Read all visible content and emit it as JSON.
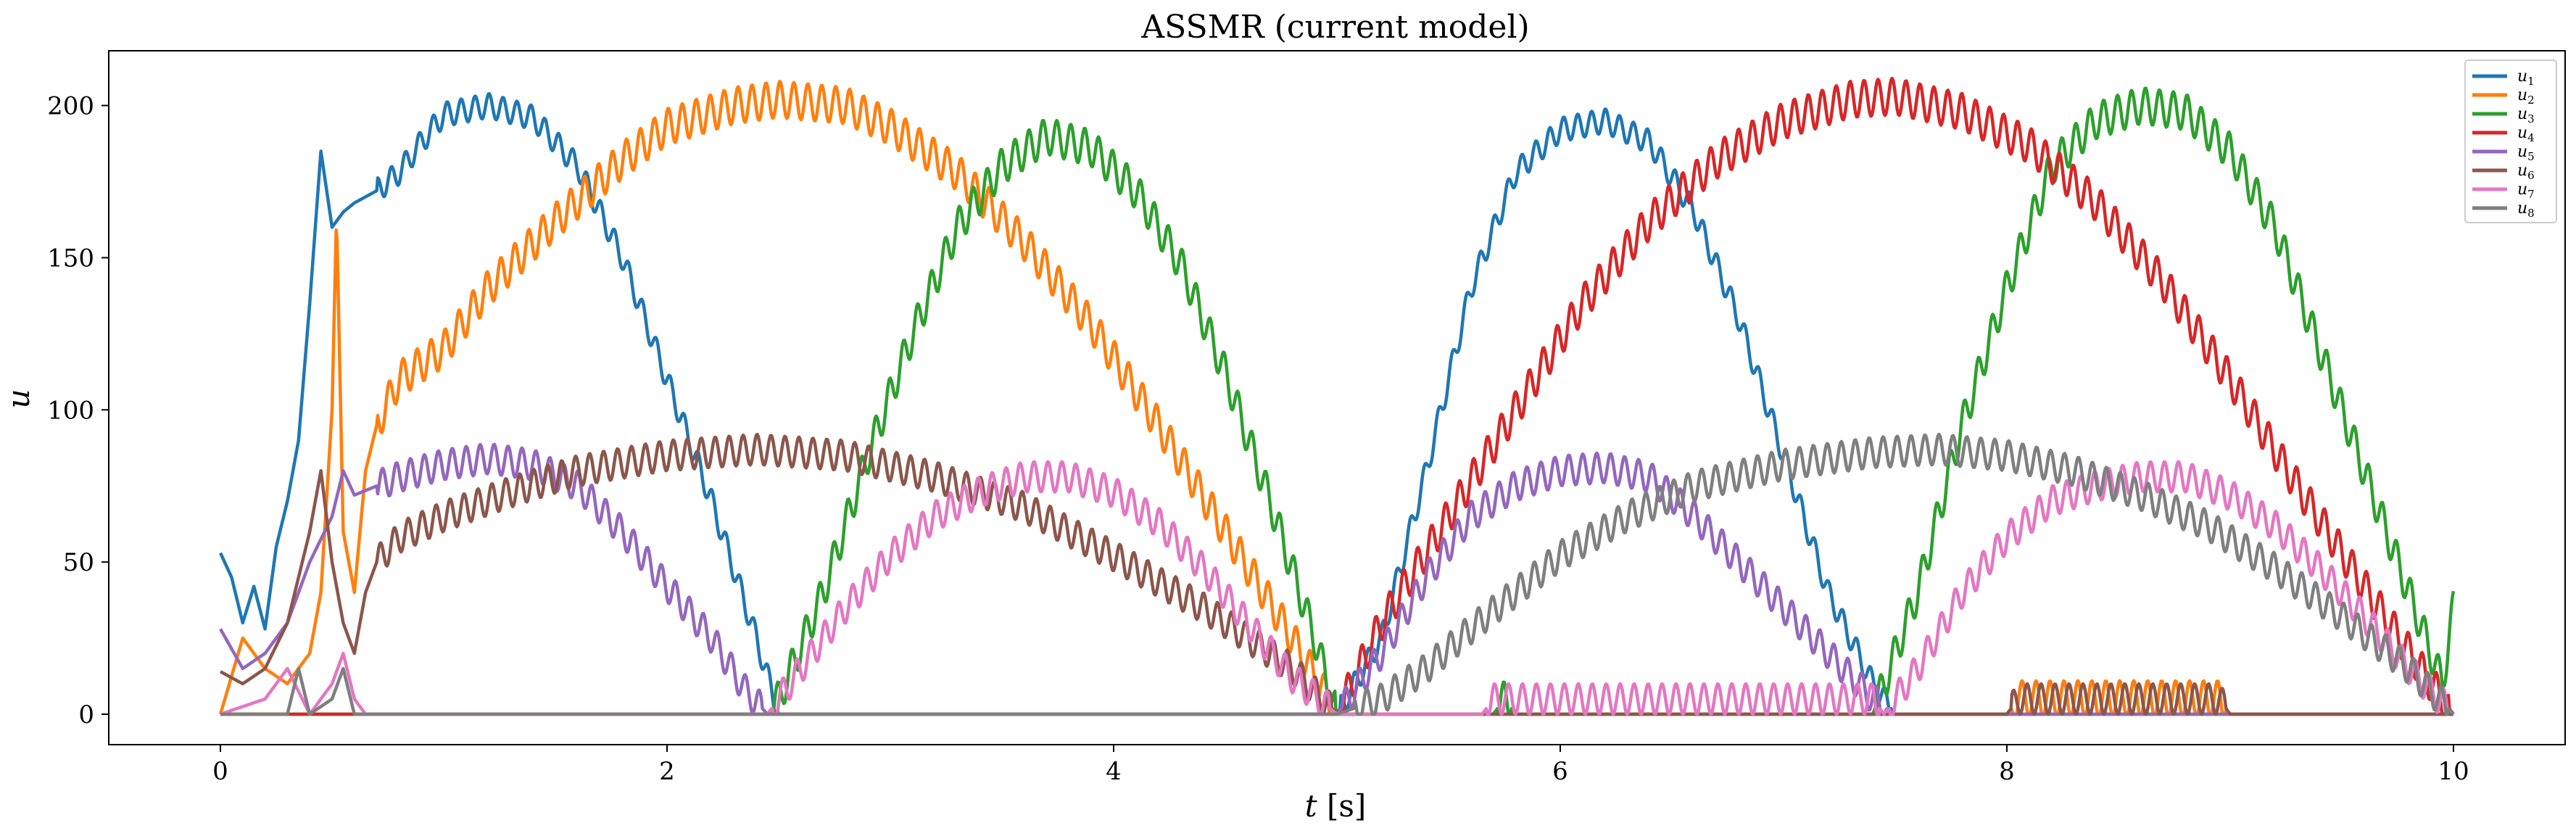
{
  "chart_data": {
    "type": "line",
    "title": "ASSMR (current model)",
    "xlabel": "t [s]",
    "ylabel": "u",
    "xlim": [
      -0.5,
      10.5
    ],
    "ylim": [
      -10,
      218
    ],
    "xticks": [
      0,
      2,
      4,
      6,
      8,
      10
    ],
    "yticks": [
      0,
      50,
      100,
      150,
      200
    ],
    "grid": false,
    "legend_position": "top-right",
    "series": [
      {
        "name": "u1",
        "color": "#1f77b4",
        "osc_amp": 4,
        "points": [
          [
            0,
            53
          ],
          [
            0.05,
            45
          ],
          [
            0.1,
            30
          ],
          [
            0.15,
            42
          ],
          [
            0.2,
            28
          ],
          [
            0.25,
            55
          ],
          [
            0.3,
            70
          ],
          [
            0.35,
            90
          ],
          [
            0.4,
            135
          ],
          [
            0.45,
            185
          ],
          [
            0.5,
            160
          ],
          [
            0.55,
            165
          ],
          [
            0.6,
            168
          ],
          [
            0.7,
            172
          ],
          [
            0.8,
            178
          ],
          [
            0.9,
            188
          ],
          [
            1.0,
            197
          ],
          [
            1.2,
            200
          ],
          [
            1.4,
            196
          ],
          [
            1.6,
            180
          ],
          [
            1.8,
            150
          ],
          [
            2.0,
            110
          ],
          [
            2.2,
            70
          ],
          [
            2.4,
            25
          ],
          [
            2.5,
            0
          ],
          [
            5.0,
            0
          ],
          [
            5.2,
            25
          ],
          [
            5.4,
            80
          ],
          [
            5.6,
            140
          ],
          [
            5.8,
            178
          ],
          [
            6.0,
            192
          ],
          [
            6.2,
            195
          ],
          [
            6.4,
            188
          ],
          [
            6.6,
            165
          ],
          [
            6.8,
            130
          ],
          [
            7.0,
            85
          ],
          [
            7.2,
            40
          ],
          [
            7.4,
            10
          ],
          [
            7.5,
            0
          ],
          [
            10,
            0
          ]
        ]
      },
      {
        "name": "u2",
        "color": "#ff7f0e",
        "osc_amp": 6,
        "points": [
          [
            0,
            0
          ],
          [
            0.1,
            25
          ],
          [
            0.2,
            15
          ],
          [
            0.3,
            10
          ],
          [
            0.4,
            20
          ],
          [
            0.45,
            40
          ],
          [
            0.5,
            100
          ],
          [
            0.52,
            165
          ],
          [
            0.55,
            60
          ],
          [
            0.6,
            40
          ],
          [
            0.65,
            80
          ],
          [
            0.7,
            95
          ],
          [
            0.8,
            110
          ],
          [
            1.0,
            120
          ],
          [
            1.2,
            140
          ],
          [
            1.5,
            162
          ],
          [
            1.8,
            182
          ],
          [
            2.0,
            193
          ],
          [
            2.3,
            200
          ],
          [
            2.5,
            202
          ],
          [
            2.8,
            200
          ],
          [
            3.0,
            193
          ],
          [
            3.3,
            178
          ],
          [
            3.6,
            155
          ],
          [
            3.9,
            128
          ],
          [
            4.2,
            95
          ],
          [
            4.5,
            60
          ],
          [
            4.8,
            25
          ],
          [
            5.0,
            0
          ],
          [
            8.0,
            0
          ],
          [
            8.05,
            5
          ],
          [
            8.95,
            5
          ],
          [
            9.0,
            0
          ],
          [
            10,
            0
          ]
        ]
      },
      {
        "name": "u3",
        "color": "#2ca02c",
        "osc_amp": 6,
        "points": [
          [
            0,
            0
          ],
          [
            2.45,
            0
          ],
          [
            2.5,
            5
          ],
          [
            2.7,
            40
          ],
          [
            2.9,
            85
          ],
          [
            3.1,
            125
          ],
          [
            3.3,
            160
          ],
          [
            3.5,
            180
          ],
          [
            3.7,
            190
          ],
          [
            3.9,
            186
          ],
          [
            4.1,
            172
          ],
          [
            4.3,
            148
          ],
          [
            4.5,
            112
          ],
          [
            4.7,
            70
          ],
          [
            4.9,
            25
          ],
          [
            5.0,
            0
          ],
          [
            5.7,
            0
          ],
          [
            5.75,
            5
          ],
          [
            5.8,
            0
          ],
          [
            7.4,
            0
          ],
          [
            7.6,
            40
          ],
          [
            7.8,
            95
          ],
          [
            8.0,
            140
          ],
          [
            8.2,
            180
          ],
          [
            8.4,
            195
          ],
          [
            8.6,
            200
          ],
          [
            8.8,
            198
          ],
          [
            9.0,
            185
          ],
          [
            9.2,
            160
          ],
          [
            9.4,
            120
          ],
          [
            9.6,
            80
          ],
          [
            9.8,
            40
          ],
          [
            9.95,
            10
          ],
          [
            10.0,
            35
          ]
        ]
      },
      {
        "name": "u4",
        "color": "#d62728",
        "osc_amp": 6,
        "points": [
          [
            0,
            0
          ],
          [
            5.0,
            0
          ],
          [
            5.2,
            30
          ],
          [
            5.5,
            65
          ],
          [
            5.8,
            100
          ],
          [
            6.1,
            135
          ],
          [
            6.4,
            162
          ],
          [
            6.7,
            182
          ],
          [
            7.0,
            195
          ],
          [
            7.3,
            202
          ],
          [
            7.5,
            203
          ],
          [
            7.8,
            198
          ],
          [
            8.1,
            187
          ],
          [
            8.4,
            168
          ],
          [
            8.7,
            142
          ],
          [
            9.0,
            110
          ],
          [
            9.3,
            75
          ],
          [
            9.6,
            42
          ],
          [
            9.9,
            10
          ],
          [
            10.0,
            0
          ]
        ]
      },
      {
        "name": "u5",
        "color": "#9467bd",
        "osc_amp": 5,
        "points": [
          [
            0,
            28
          ],
          [
            0.1,
            15
          ],
          [
            0.2,
            20
          ],
          [
            0.3,
            30
          ],
          [
            0.4,
            50
          ],
          [
            0.5,
            65
          ],
          [
            0.55,
            80
          ],
          [
            0.6,
            72
          ],
          [
            0.7,
            75
          ],
          [
            0.8,
            78
          ],
          [
            1.0,
            82
          ],
          [
            1.2,
            84
          ],
          [
            1.4,
            82
          ],
          [
            1.6,
            75
          ],
          [
            1.8,
            60
          ],
          [
            2.0,
            42
          ],
          [
            2.2,
            25
          ],
          [
            2.35,
            8
          ],
          [
            2.45,
            0
          ],
          [
            5.0,
            0
          ],
          [
            5.2,
            20
          ],
          [
            5.4,
            45
          ],
          [
            5.6,
            65
          ],
          [
            5.8,
            75
          ],
          [
            6.0,
            80
          ],
          [
            6.2,
            81
          ],
          [
            6.4,
            78
          ],
          [
            6.6,
            65
          ],
          [
            6.8,
            50
          ],
          [
            7.0,
            35
          ],
          [
            7.2,
            20
          ],
          [
            7.4,
            5
          ],
          [
            7.5,
            0
          ],
          [
            10,
            0
          ]
        ]
      },
      {
        "name": "u6",
        "color": "#8c564b",
        "osc_amp": 5,
        "points": [
          [
            0,
            14
          ],
          [
            0.1,
            10
          ],
          [
            0.2,
            15
          ],
          [
            0.3,
            30
          ],
          [
            0.4,
            60
          ],
          [
            0.45,
            80
          ],
          [
            0.5,
            50
          ],
          [
            0.55,
            30
          ],
          [
            0.6,
            20
          ],
          [
            0.65,
            40
          ],
          [
            0.7,
            50
          ],
          [
            0.8,
            58
          ],
          [
            1.0,
            65
          ],
          [
            1.3,
            73
          ],
          [
            1.6,
            80
          ],
          [
            2.0,
            85
          ],
          [
            2.4,
            87
          ],
          [
            2.8,
            85
          ],
          [
            3.2,
            78
          ],
          [
            3.6,
            68
          ],
          [
            4.0,
            52
          ],
          [
            4.4,
            35
          ],
          [
            4.8,
            15
          ],
          [
            5.0,
            0
          ],
          [
            8.0,
            0
          ],
          [
            8.05,
            5
          ],
          [
            8.95,
            5
          ],
          [
            9.0,
            0
          ],
          [
            10,
            0
          ]
        ]
      },
      {
        "name": "u7",
        "color": "#e377c2",
        "osc_amp": 5,
        "points": [
          [
            0,
            0
          ],
          [
            0.2,
            5
          ],
          [
            0.3,
            15
          ],
          [
            0.4,
            0
          ],
          [
            0.5,
            10
          ],
          [
            0.55,
            20
          ],
          [
            0.6,
            5
          ],
          [
            0.65,
            0
          ],
          [
            2.45,
            0
          ],
          [
            2.6,
            15
          ],
          [
            2.8,
            35
          ],
          [
            3.0,
            52
          ],
          [
            3.2,
            65
          ],
          [
            3.4,
            73
          ],
          [
            3.6,
            78
          ],
          [
            3.8,
            78
          ],
          [
            4.0,
            73
          ],
          [
            4.2,
            63
          ],
          [
            4.4,
            48
          ],
          [
            4.6,
            30
          ],
          [
            4.8,
            12
          ],
          [
            5.0,
            0
          ],
          [
            5.65,
            0
          ],
          [
            5.7,
            5
          ],
          [
            7.4,
            5
          ],
          [
            7.45,
            0
          ],
          [
            7.6,
            15
          ],
          [
            7.8,
            40
          ],
          [
            8.0,
            58
          ],
          [
            8.2,
            70
          ],
          [
            8.4,
            75
          ],
          [
            8.6,
            78
          ],
          [
            8.8,
            78
          ],
          [
            9.0,
            72
          ],
          [
            9.2,
            62
          ],
          [
            9.4,
            48
          ],
          [
            9.6,
            32
          ],
          [
            9.8,
            15
          ],
          [
            10.0,
            0
          ]
        ]
      },
      {
        "name": "u8",
        "color": "#7f7f7f",
        "osc_amp": 5,
        "points": [
          [
            0,
            0
          ],
          [
            0.3,
            0
          ],
          [
            0.35,
            15
          ],
          [
            0.4,
            0
          ],
          [
            0.5,
            5
          ],
          [
            0.55,
            15
          ],
          [
            0.6,
            0
          ],
          [
            5.0,
            0
          ],
          [
            5.2,
            5
          ],
          [
            5.4,
            15
          ],
          [
            5.6,
            28
          ],
          [
            5.8,
            40
          ],
          [
            6.0,
            52
          ],
          [
            6.3,
            65
          ],
          [
            6.6,
            75
          ],
          [
            7.0,
            82
          ],
          [
            7.4,
            86
          ],
          [
            7.7,
            87
          ],
          [
            8.0,
            85
          ],
          [
            8.3,
            80
          ],
          [
            8.6,
            72
          ],
          [
            8.9,
            62
          ],
          [
            9.2,
            48
          ],
          [
            9.5,
            32
          ],
          [
            9.8,
            15
          ],
          [
            10.0,
            0
          ]
        ]
      }
    ]
  },
  "legend": {
    "items": [
      {
        "symbol": "u",
        "sub": "1",
        "color": "#1f77b4"
      },
      {
        "symbol": "u",
        "sub": "2",
        "color": "#ff7f0e"
      },
      {
        "symbol": "u",
        "sub": "3",
        "color": "#2ca02c"
      },
      {
        "symbol": "u",
        "sub": "4",
        "color": "#d62728"
      },
      {
        "symbol": "u",
        "sub": "5",
        "color": "#9467bd"
      },
      {
        "symbol": "u",
        "sub": "6",
        "color": "#8c564b"
      },
      {
        "symbol": "u",
        "sub": "7",
        "color": "#e377c2"
      },
      {
        "symbol": "u",
        "sub": "8",
        "color": "#7f7f7f"
      }
    ]
  }
}
